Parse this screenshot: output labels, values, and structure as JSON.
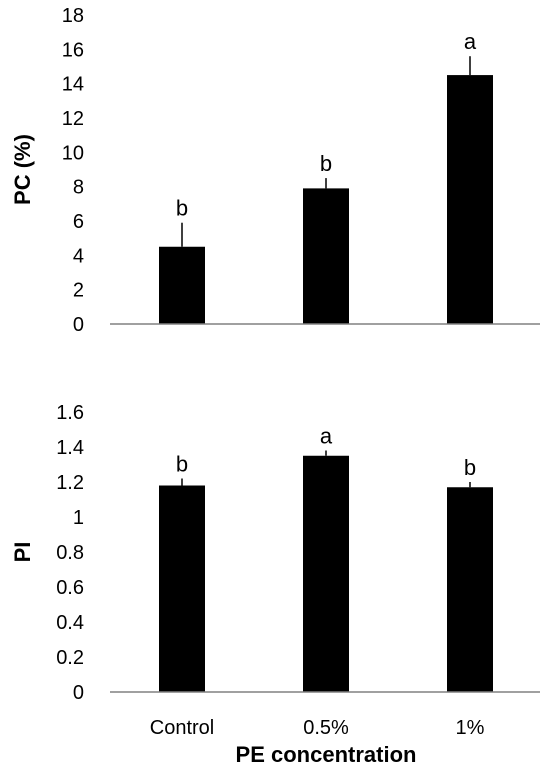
{
  "chart_data": [
    {
      "type": "bar",
      "categories": [
        "Control",
        "0.5%",
        "1%"
      ],
      "values": [
        4.5,
        7.9,
        14.5
      ],
      "errors": [
        1.4,
        0.6,
        1.1
      ],
      "letters": [
        "b",
        "b",
        "a"
      ],
      "ylabel": "PC (%)",
      "ylim": [
        0,
        18
      ],
      "yticks": [
        0,
        2,
        4,
        6,
        8,
        10,
        12,
        14,
        16,
        18
      ],
      "ytick_labels": [
        "0",
        "2",
        "4",
        "6",
        "8",
        "10",
        "12",
        "14",
        "16",
        "18"
      ],
      "bar_color": "#000000"
    },
    {
      "type": "bar",
      "categories": [
        "Control",
        "0.5%",
        "1%"
      ],
      "values": [
        1.18,
        1.35,
        1.17
      ],
      "errors": [
        0.04,
        0.03,
        0.03
      ],
      "letters": [
        "b",
        "a",
        "b"
      ],
      "ylabel": "PI",
      "xlabel": "PE concentration",
      "ylim": [
        0,
        1.6
      ],
      "yticks": [
        0,
        0.2,
        0.4,
        0.6,
        0.8,
        1.0,
        1.2,
        1.4,
        1.6
      ],
      "ytick_labels": [
        "0",
        "0.2",
        "0.4",
        "0.6",
        "0.8",
        "1",
        "1.2",
        "1.4",
        "1.6"
      ],
      "bar_color": "#000000"
    }
  ]
}
